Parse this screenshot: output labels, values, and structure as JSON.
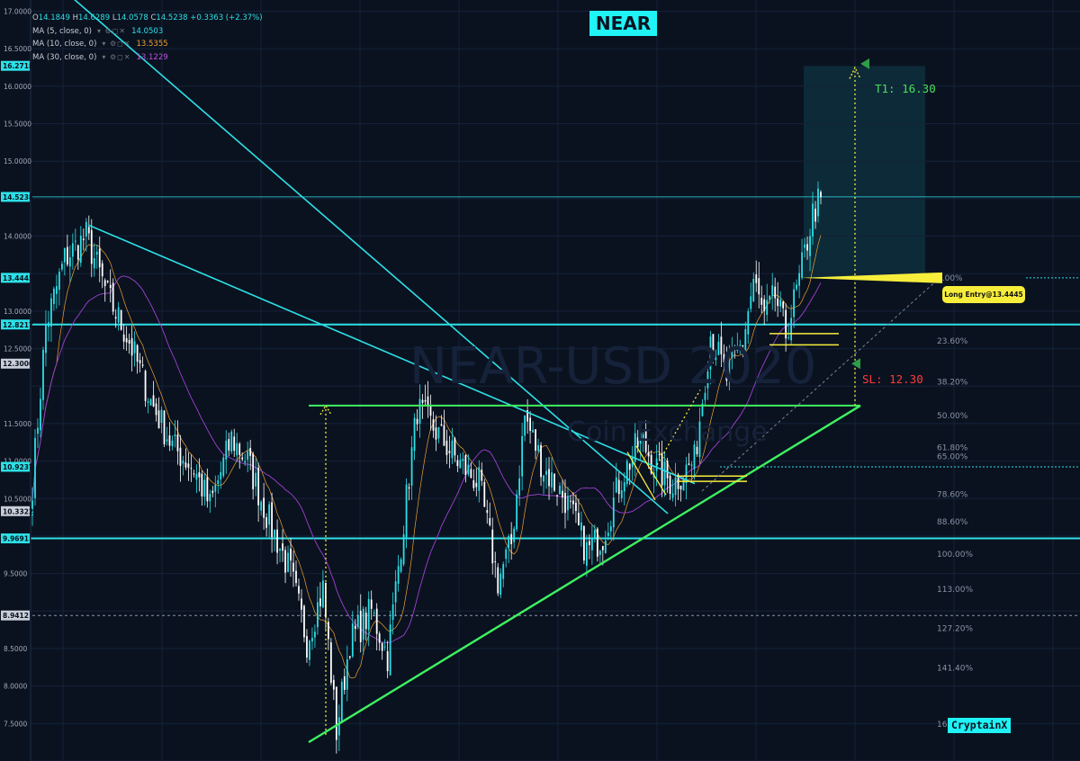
{
  "chart_title": "NEAR",
  "brand": "CryptainX",
  "watermark": "NEAR-USD",
  "watermark_year": "2020",
  "watermark_sub": "Coin Exchange",
  "legend": {
    "ohlc": {
      "o": "14.1849",
      "h": "14.6289",
      "l": "14.0578",
      "c": "14.5238",
      "chg": "+0.3363 (+2.37%)"
    },
    "mas": [
      {
        "label": "MA (5, close, 0)",
        "value": "14.0503",
        "color": "#2de0e6"
      },
      {
        "label": "MA (10, close, 0)",
        "value": "13.5355",
        "color": "#f0a030"
      },
      {
        "label": "MA (30, close, 0)",
        "value": "13.1229",
        "color": "#c050e0"
      }
    ]
  },
  "entry_label": "Long Entry@13.4445",
  "target_label": "T1: 16.30",
  "stop_label": "SL: 12.30",
  "colors": {
    "background": "#0a1220",
    "cyan": "#2de0e6",
    "green": "#3ef060",
    "yellow": "#f7ee3b",
    "candle_up": "#2de0e6",
    "candle_down": "#ffffff"
  },
  "chart_data": {
    "type": "candlestick",
    "symbol": "NEAR-USD",
    "ylim": [
      7.0,
      17.15
    ],
    "y_ticks": [
      "17.0000",
      "16.5000",
      "16.0000",
      "15.5000",
      "15.0000",
      "14.0000",
      "13.0000",
      "12.5000",
      "11.5000",
      "11.0000",
      "10.5000",
      "9.5000",
      "8.5000",
      "8.0000",
      "7.5000"
    ],
    "price_tags": [
      {
        "label": "16.2718",
        "value": 16.2718,
        "style": "cyan"
      },
      {
        "label": "14.5238",
        "value": 14.5238,
        "style": "cyan"
      },
      {
        "label": "13.4445",
        "value": 13.4445,
        "style": "cyan"
      },
      {
        "label": "12.8217",
        "value": 12.8217,
        "style": "cyan"
      },
      {
        "label": "12.3000",
        "value": 12.3,
        "style": "gray"
      },
      {
        "label": "10.9237",
        "value": 10.9237,
        "style": "cyan"
      },
      {
        "label": "10.3322",
        "value": 10.3322,
        "style": "gray"
      },
      {
        "label": "9.9691",
        "value": 9.9691,
        "style": "cyan"
      },
      {
        "label": "8.9412",
        "value": 8.9412,
        "style": "gray"
      }
    ],
    "fib_levels": [
      {
        "label": "0.00%",
        "price": 13.4445
      },
      {
        "label": "23.60%",
        "price": 12.6
      },
      {
        "label": "38.20%",
        "price": 12.06
      },
      {
        "label": "50.00%",
        "price": 11.61
      },
      {
        "label": "61.80%",
        "price": 11.18
      },
      {
        "label": "65.00%",
        "price": 11.06
      },
      {
        "label": "78.60%",
        "price": 10.56
      },
      {
        "label": "88.60%",
        "price": 10.19
      },
      {
        "label": "100.00%",
        "price": 9.76
      },
      {
        "label": "113.00%",
        "price": 9.29
      },
      {
        "label": "127.20%",
        "price": 8.77
      },
      {
        "label": "141.40%",
        "price": 8.24
      },
      {
        "label": "161.80%",
        "price": 7.49
      }
    ],
    "horizontal_levels": [
      14.5238,
      12.8217,
      9.9691
    ],
    "dashed_levels": [
      13.4445,
      10.9237,
      8.9412
    ],
    "entry": 13.4445,
    "target": 16.3,
    "stop": 12.3,
    "anchors": [
      {
        "i": 0,
        "p": 10.7
      },
      {
        "i": 5,
        "p": 12.8
      },
      {
        "i": 12,
        "p": 13.7
      },
      {
        "i": 20,
        "p": 14.0
      },
      {
        "i": 28,
        "p": 13.2
      },
      {
        "i": 36,
        "p": 12.6
      },
      {
        "i": 44,
        "p": 11.8
      },
      {
        "i": 52,
        "p": 11.2
      },
      {
        "i": 60,
        "p": 10.9
      },
      {
        "i": 66,
        "p": 10.4
      },
      {
        "i": 74,
        "p": 11.3
      },
      {
        "i": 80,
        "p": 11.0
      },
      {
        "i": 88,
        "p": 10.2
      },
      {
        "i": 96,
        "p": 9.5
      },
      {
        "i": 102,
        "p": 8.6
      },
      {
        "i": 108,
        "p": 9.3
      },
      {
        "i": 113,
        "p": 7.4
      },
      {
        "i": 118,
        "p": 8.6
      },
      {
        "i": 126,
        "p": 9.0
      },
      {
        "i": 132,
        "p": 8.4
      },
      {
        "i": 138,
        "p": 10.2
      },
      {
        "i": 143,
        "p": 11.7
      },
      {
        "i": 150,
        "p": 11.4
      },
      {
        "i": 158,
        "p": 11.0
      },
      {
        "i": 166,
        "p": 10.7
      },
      {
        "i": 173,
        "p": 9.4
      },
      {
        "i": 178,
        "p": 9.9
      },
      {
        "i": 183,
        "p": 11.6
      },
      {
        "i": 190,
        "p": 10.9
      },
      {
        "i": 198,
        "p": 10.5
      },
      {
        "i": 206,
        "p": 9.8
      },
      {
        "i": 212,
        "p": 10.0
      },
      {
        "i": 218,
        "p": 10.7
      },
      {
        "i": 226,
        "p": 11.3
      },
      {
        "i": 232,
        "p": 10.9
      },
      {
        "i": 238,
        "p": 10.7
      },
      {
        "i": 246,
        "p": 11.0
      },
      {
        "i": 252,
        "p": 12.7
      },
      {
        "i": 258,
        "p": 12.1
      },
      {
        "i": 264,
        "p": 12.6
      },
      {
        "i": 268,
        "p": 13.4
      },
      {
        "i": 272,
        "p": 12.9
      },
      {
        "i": 276,
        "p": 13.2
      },
      {
        "i": 280,
        "p": 12.7
      },
      {
        "i": 285,
        "p": 13.4
      },
      {
        "i": 290,
        "p": 14.3
      },
      {
        "i": 293,
        "p": 14.52
      }
    ]
  }
}
